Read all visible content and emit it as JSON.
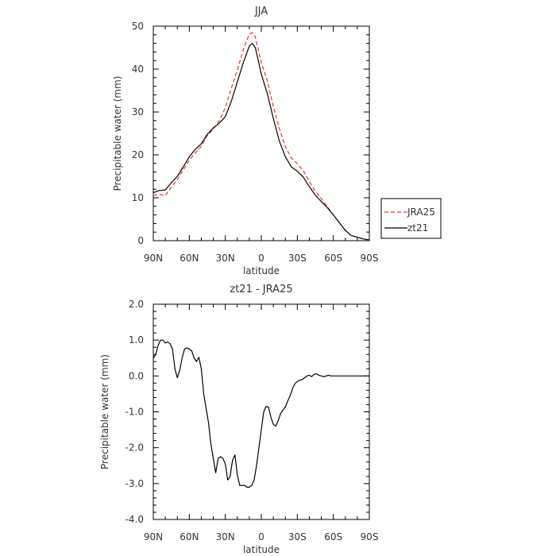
{
  "chart_data": [
    {
      "type": "line",
      "title": "JJA",
      "xlabel": "latitude",
      "ylabel": "Precipitable water (mm)",
      "xlim": [
        90,
        -90
      ],
      "ylim": [
        0,
        50
      ],
      "xticks": [
        90,
        60,
        30,
        0,
        -30,
        -60,
        -90
      ],
      "xtick_labels": [
        "90N",
        "60N",
        "30N",
        "0",
        "30S",
        "60S",
        "90S"
      ],
      "yticks": [
        0,
        10,
        20,
        30,
        40,
        50
      ],
      "ytick_labels": [
        "0",
        "10",
        "20",
        "30",
        "40",
        "50"
      ],
      "legend": {
        "position": "right",
        "entries": [
          {
            "label": "JRA25",
            "color": "#e8332c",
            "style": "dashed"
          },
          {
            "label": "zt21",
            "color": "#000000",
            "style": "solid"
          }
        ]
      },
      "series": [
        {
          "name": "JRA25",
          "color": "#e8332c",
          "dash": "dashed",
          "x": [
            90,
            85,
            80,
            75,
            70,
            65,
            60,
            55,
            50,
            45,
            40,
            35,
            30,
            25,
            20,
            15,
            10,
            7.5,
            5,
            2.5,
            0,
            -5,
            -10,
            -15,
            -20,
            -25,
            -30,
            -35,
            -40,
            -45,
            -50,
            -55,
            -60,
            -65,
            -70,
            -75,
            -80,
            -85,
            -90
          ],
          "y": [
            10.6,
            10.8,
            10.5,
            12.5,
            14.2,
            16.5,
            18.8,
            20.5,
            22,
            24.5,
            26,
            28,
            31,
            35.5,
            39.8,
            44.5,
            48.2,
            48.5,
            47.5,
            44.5,
            41.5,
            37.3,
            31.3,
            26.1,
            21.9,
            19.3,
            17.9,
            16.3,
            13.8,
            11.5,
            9.8,
            7.9,
            6,
            4.2,
            2.3,
            1.2,
            0.8,
            0.4,
            0.1
          ]
        },
        {
          "name": "zt21",
          "color": "#000000",
          "dash": "solid",
          "x": [
            90,
            85,
            80,
            75,
            70,
            65,
            60,
            55,
            50,
            45,
            40,
            35,
            30,
            25,
            20,
            15,
            10,
            7.5,
            5,
            2.5,
            0,
            -5,
            -10,
            -15,
            -20,
            -25,
            -30,
            -35,
            -40,
            -45,
            -50,
            -55,
            -60,
            -65,
            -70,
            -75,
            -80,
            -85,
            -90
          ],
          "y": [
            11.2,
            11.7,
            11.8,
            13.5,
            15,
            17.2,
            19.6,
            21.3,
            22.6,
            24.8,
            26.3,
            27.4,
            28.9,
            32.5,
            37,
            41.5,
            45.4,
            46,
            45,
            42,
            38.8,
            34.3,
            28.5,
            23.2,
            19.6,
            17.2,
            16.2,
            14.8,
            12.6,
            10.6,
            9.1,
            7.7,
            6,
            4.2,
            2.4,
            1.2,
            0.8,
            0.4,
            0.2
          ]
        }
      ]
    },
    {
      "type": "line",
      "title": "zt21 - JRA25",
      "xlabel": "latitude",
      "ylabel": "Precipitable water (mm)",
      "xlim": [
        90,
        -90
      ],
      "ylim": [
        -4,
        2
      ],
      "xticks": [
        90,
        60,
        30,
        0,
        -30,
        -60,
        -90
      ],
      "xtick_labels": [
        "90N",
        "60N",
        "30N",
        "0",
        "30S",
        "60S",
        "90S"
      ],
      "yticks": [
        -4,
        -3,
        -2,
        -1,
        0,
        1,
        2
      ],
      "ytick_labels": [
        "-4.0",
        "-3.0",
        "-2.0",
        "-1.0",
        "0.0",
        "1.0",
        "2.0"
      ],
      "series": [
        {
          "name": "",
          "color": "#000000",
          "dash": "solid",
          "x": [
            90,
            88,
            86,
            84,
            82,
            80,
            78,
            76,
            74,
            72,
            70,
            68,
            66,
            64,
            62,
            60,
            58,
            56,
            54,
            52,
            50,
            48,
            46,
            44,
            42,
            40,
            38,
            36,
            34,
            32,
            30,
            28,
            26,
            24,
            22,
            20,
            18,
            16,
            14,
            12,
            10,
            8,
            6,
            4,
            2,
            0,
            -2,
            -4,
            -6,
            -8,
            -10,
            -12,
            -14,
            -16,
            -18,
            -20,
            -22,
            -24,
            -26,
            -28,
            -30,
            -32,
            -34,
            -36,
            -38,
            -40,
            -42,
            -44,
            -46,
            -48,
            -50,
            -52,
            -54,
            -56,
            -58,
            -60,
            -62,
            -64,
            -66,
            -68,
            -70,
            -72,
            -74,
            -76,
            -78,
            -80,
            -82,
            -84,
            -86,
            -88,
            -90
          ],
          "y": [
            0.5,
            0.6,
            0.85,
            1.0,
            1.0,
            0.92,
            0.95,
            0.9,
            0.75,
            0.2,
            -0.05,
            0.15,
            0.5,
            0.75,
            0.78,
            0.75,
            0.7,
            0.5,
            0.4,
            0.52,
            0.2,
            -0.5,
            -0.9,
            -1.3,
            -1.9,
            -2.3,
            -2.7,
            -2.3,
            -2.25,
            -2.3,
            -2.45,
            -2.9,
            -2.8,
            -2.35,
            -2.2,
            -2.75,
            -3.05,
            -3.05,
            -3.05,
            -3.1,
            -3.1,
            -3.05,
            -2.9,
            -2.5,
            -2.0,
            -1.5,
            -1.0,
            -0.85,
            -0.87,
            -1.15,
            -1.35,
            -1.4,
            -1.25,
            -1.05,
            -0.95,
            -0.87,
            -0.7,
            -0.55,
            -0.35,
            -0.22,
            -0.15,
            -0.12,
            -0.1,
            -0.05,
            0.0,
            0.02,
            -0.02,
            0.05,
            0.06,
            0.02,
            0.0,
            -0.02,
            0.0,
            0.02,
            0.0,
            0.0,
            0.0,
            0.0,
            0.0,
            0.0,
            0.0,
            0.0,
            0.0,
            0.0,
            0.0,
            0.0,
            0.0,
            0.0,
            0.0,
            0.0,
            0.0
          ]
        }
      ]
    }
  ]
}
